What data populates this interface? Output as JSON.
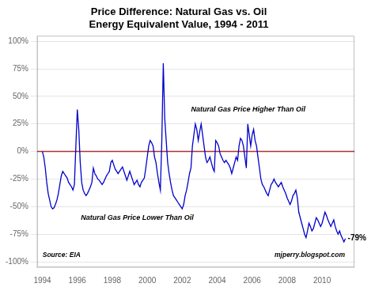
{
  "chart_data": {
    "type": "line",
    "title": "Price Difference: Natural Gas vs. Oil\nEnergy Equivalent Value, 1994 - 2011",
    "color": "#0000cc",
    "xlim": [
      1993.7,
      2011.85
    ],
    "xticks": [
      1994,
      1996,
      1998,
      2000,
      2002,
      2004,
      2006,
      2008,
      2010
    ],
    "ylim": [
      -1.05,
      1.05
    ],
    "yticks": [
      {
        "value": -1.0,
        "label": "-100%"
      },
      {
        "value": -0.75,
        "label": "-75%"
      },
      {
        "value": -0.5,
        "label": "-50%"
      },
      {
        "value": -0.25,
        "label": "-25%"
      },
      {
        "value": 0.0,
        "label": "0%"
      },
      {
        "value": 0.25,
        "label": "25%"
      },
      {
        "value": 0.5,
        "label": "50%"
      },
      {
        "value": 0.75,
        "label": "75%"
      },
      {
        "value": 1.0,
        "label": "100%"
      }
    ],
    "grid": "y",
    "reference_line": {
      "y": 0.0,
      "color": "#aa3333"
    },
    "annotations": [
      "Natural Gas Price Higher Than Oil",
      "Natural Gas Price Lower Than Oil",
      "-79%",
      "Source: EIA",
      "mjperry.blogspot.com"
    ],
    "x": [
      1994.0,
      1994.083,
      1994.167,
      1994.25,
      1994.333,
      1994.417,
      1994.5,
      1994.583,
      1994.667,
      1994.75,
      1994.833,
      1994.917,
      1995.0,
      1995.083,
      1995.167,
      1995.25,
      1995.333,
      1995.417,
      1995.5,
      1995.583,
      1995.667,
      1995.75,
      1995.833,
      1995.917,
      1996.0,
      1996.083,
      1996.167,
      1996.25,
      1996.333,
      1996.417,
      1996.5,
      1996.583,
      1996.667,
      1996.75,
      1996.833,
      1996.917,
      1997.0,
      1997.083,
      1997.167,
      1997.25,
      1997.333,
      1997.417,
      1997.5,
      1997.583,
      1997.667,
      1997.75,
      1997.833,
      1997.917,
      1998.0,
      1998.083,
      1998.167,
      1998.25,
      1998.333,
      1998.417,
      1998.5,
      1998.583,
      1998.667,
      1998.75,
      1998.833,
      1998.917,
      1999.0,
      1999.083,
      1999.167,
      1999.25,
      1999.333,
      1999.417,
      1999.5,
      1999.583,
      1999.667,
      1999.75,
      1999.833,
      1999.917,
      2000.0,
      2000.083,
      2000.167,
      2000.25,
      2000.333,
      2000.417,
      2000.5,
      2000.583,
      2000.667,
      2000.75,
      2000.833,
      2000.917,
      2001.0,
      2001.083,
      2001.167,
      2001.25,
      2001.333,
      2001.417,
      2001.5,
      2001.583,
      2001.667,
      2001.75,
      2001.833,
      2001.917,
      2002.0,
      2002.083,
      2002.167,
      2002.25,
      2002.333,
      2002.417,
      2002.5,
      2002.583,
      2002.667,
      2002.75,
      2002.833,
      2002.917,
      2003.0,
      2003.083,
      2003.167,
      2003.25,
      2003.333,
      2003.417,
      2003.5,
      2003.583,
      2003.667,
      2003.75,
      2003.833,
      2003.917,
      2004.0,
      2004.083,
      2004.167,
      2004.25,
      2004.333,
      2004.417,
      2004.5,
      2004.583,
      2004.667,
      2004.75,
      2004.833,
      2004.917,
      2005.0,
      2005.083,
      2005.167,
      2005.25,
      2005.333,
      2005.417,
      2005.5,
      2005.583,
      2005.667,
      2005.75,
      2005.833,
      2005.917,
      2006.0,
      2006.083,
      2006.167,
      2006.25,
      2006.333,
      2006.417,
      2006.5,
      2006.583,
      2006.667,
      2006.75,
      2006.833,
      2006.917,
      2007.0,
      2007.083,
      2007.167,
      2007.25,
      2007.333,
      2007.417,
      2007.5,
      2007.583,
      2007.667,
      2007.75,
      2007.833,
      2007.917,
      2008.0,
      2008.083,
      2008.167,
      2008.25,
      2008.333,
      2008.417,
      2008.5,
      2008.583,
      2008.667,
      2008.75,
      2008.833,
      2008.917,
      2009.0,
      2009.083,
      2009.167,
      2009.25,
      2009.333,
      2009.417,
      2009.5,
      2009.583,
      2009.667,
      2009.75,
      2009.833,
      2009.917,
      2010.0,
      2010.083,
      2010.167,
      2010.25,
      2010.333,
      2010.417,
      2010.5,
      2010.583,
      2010.667,
      2010.75,
      2010.833,
      2010.917,
      2011.0,
      2011.083,
      2011.167,
      2011.25,
      2011.333
    ],
    "values": [
      0.0,
      -0.05,
      -0.15,
      -0.28,
      -0.38,
      -0.44,
      -0.5,
      -0.52,
      -0.51,
      -0.48,
      -0.44,
      -0.38,
      -0.3,
      -0.22,
      -0.18,
      -0.2,
      -0.22,
      -0.24,
      -0.28,
      -0.3,
      -0.32,
      -0.35,
      -0.3,
      0.05,
      0.38,
      0.2,
      -0.1,
      -0.28,
      -0.35,
      -0.38,
      -0.4,
      -0.38,
      -0.35,
      -0.32,
      -0.28,
      -0.15,
      -0.2,
      -0.22,
      -0.25,
      -0.26,
      -0.28,
      -0.3,
      -0.28,
      -0.25,
      -0.22,
      -0.2,
      -0.18,
      -0.1,
      -0.08,
      -0.12,
      -0.16,
      -0.18,
      -0.2,
      -0.18,
      -0.16,
      -0.14,
      -0.18,
      -0.22,
      -0.26,
      -0.22,
      -0.18,
      -0.22,
      -0.26,
      -0.3,
      -0.28,
      -0.26,
      -0.3,
      -0.32,
      -0.28,
      -0.26,
      -0.24,
      -0.15,
      -0.05,
      0.05,
      0.1,
      0.08,
      0.05,
      -0.05,
      -0.1,
      -0.2,
      -0.28,
      -0.35,
      0.1,
      0.8,
      0.3,
      0.1,
      -0.1,
      -0.2,
      -0.28,
      -0.35,
      -0.4,
      -0.42,
      -0.44,
      -0.46,
      -0.48,
      -0.5,
      -0.52,
      -0.48,
      -0.4,
      -0.35,
      -0.28,
      -0.2,
      -0.15,
      0.05,
      0.15,
      0.25,
      0.2,
      0.1,
      0.18,
      0.25,
      0.15,
      0.05,
      -0.05,
      -0.1,
      -0.08,
      -0.05,
      -0.1,
      -0.15,
      -0.18,
      0.1,
      0.08,
      0.05,
      -0.02,
      -0.05,
      -0.08,
      -0.1,
      -0.08,
      -0.1,
      -0.12,
      -0.15,
      -0.2,
      -0.15,
      -0.1,
      -0.05,
      -0.08,
      0.05,
      0.12,
      0.1,
      0.05,
      -0.05,
      -0.15,
      0.25,
      0.15,
      0.05,
      0.15,
      0.2,
      0.1,
      0.05,
      -0.05,
      -0.15,
      -0.25,
      -0.3,
      -0.32,
      -0.35,
      -0.38,
      -0.4,
      -0.35,
      -0.3,
      -0.28,
      -0.25,
      -0.28,
      -0.3,
      -0.32,
      -0.3,
      -0.28,
      -0.32,
      -0.35,
      -0.38,
      -0.42,
      -0.45,
      -0.48,
      -0.45,
      -0.4,
      -0.38,
      -0.35,
      -0.42,
      -0.55,
      -0.6,
      -0.65,
      -0.7,
      -0.75,
      -0.78,
      -0.72,
      -0.65,
      -0.68,
      -0.72,
      -0.7,
      -0.65,
      -0.6,
      -0.62,
      -0.65,
      -0.68,
      -0.65,
      -0.6,
      -0.55,
      -0.58,
      -0.62,
      -0.65,
      -0.68,
      -0.65,
      -0.62,
      -0.68,
      -0.72,
      -0.75,
      -0.72,
      -0.76,
      -0.79,
      -0.82,
      -0.79
    ]
  }
}
